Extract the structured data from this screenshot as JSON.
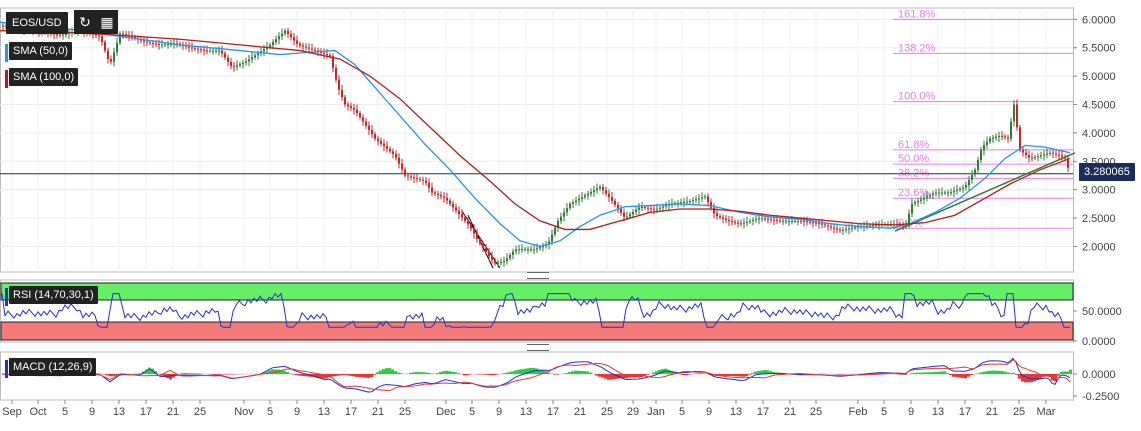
{
  "chart_data": [
    {
      "type": "line",
      "title": "EOS/USD",
      "series_labels": [
        "SMA (50,0)",
        "SMA (100,0)"
      ],
      "colors": {
        "price_up": "#2e7d32",
        "price_down": "#c62828",
        "sma50": "#2196f3",
        "sma100": "#b71c1c",
        "fib": "#e77ee7",
        "last": "#1a2d5a"
      },
      "y_ticks": [
        "6.0000",
        "5.5000",
        "5.0000",
        "4.5000",
        "4.0000",
        "3.5000",
        "3.0000",
        "2.5000",
        "2.0000"
      ],
      "ylim": [
        1.55,
        6.2
      ],
      "last_price": "3.280065",
      "x_ticks": [
        "Sep",
        "Oct",
        "5",
        "9",
        "13",
        "17",
        "21",
        "25",
        "Nov",
        "5",
        "9",
        "13",
        "17",
        "21",
        "25",
        "Dec",
        "5",
        "9",
        "13",
        "17",
        "21",
        "25",
        "29",
        "Jan",
        "5",
        "9",
        "13",
        "17",
        "21",
        "25",
        "Feb",
        "5",
        "9",
        "13",
        "17",
        "21",
        "25",
        "Mar"
      ],
      "fibonacci": [
        {
          "label": "161.8%",
          "value": 6.0
        },
        {
          "label": "138.2%",
          "value": 5.4
        },
        {
          "label": "100.0%",
          "value": 4.55
        },
        {
          "label": "61.8%",
          "value": 3.7
        },
        {
          "label": "50.0%",
          "value": 3.45
        },
        {
          "label": "38.2%",
          "value": 3.2
        },
        {
          "label": "23.6%",
          "value": 2.85
        },
        {
          "label": "0.0%",
          "value": 2.32
        }
      ],
      "price": [
        [
          0,
          5.9
        ],
        [
          20,
          5.82
        ],
        [
          40,
          5.78
        ],
        [
          60,
          5.72
        ],
        [
          80,
          5.8
        ],
        [
          100,
          5.7
        ],
        [
          110,
          5.2
        ],
        [
          120,
          5.75
        ],
        [
          130,
          5.7
        ],
        [
          145,
          5.6
        ],
        [
          160,
          5.55
        ],
        [
          175,
          5.58
        ],
        [
          190,
          5.5
        ],
        [
          205,
          5.45
        ],
        [
          220,
          5.45
        ],
        [
          232,
          5.15
        ],
        [
          245,
          5.25
        ],
        [
          258,
          5.4
        ],
        [
          270,
          5.55
        ],
        [
          285,
          5.8
        ],
        [
          298,
          5.55
        ],
        [
          315,
          5.45
        ],
        [
          330,
          5.35
        ],
        [
          338,
          4.8
        ],
        [
          345,
          4.5
        ],
        [
          355,
          4.4
        ],
        [
          365,
          4.15
        ],
        [
          375,
          3.9
        ],
        [
          385,
          3.75
        ],
        [
          395,
          3.6
        ],
        [
          405,
          3.25
        ],
        [
          415,
          3.2
        ],
        [
          425,
          3.15
        ],
        [
          432,
          2.95
        ],
        [
          445,
          2.85
        ],
        [
          460,
          2.55
        ],
        [
          470,
          2.35
        ],
        [
          478,
          2.1
        ],
        [
          488,
          1.85
        ],
        [
          495,
          1.7
        ],
        [
          505,
          1.75
        ],
        [
          515,
          1.95
        ],
        [
          525,
          1.95
        ],
        [
          535,
          1.95
        ],
        [
          548,
          2.05
        ],
        [
          558,
          2.45
        ],
        [
          570,
          2.75
        ],
        [
          585,
          2.9
        ],
        [
          600,
          3.05
        ],
        [
          610,
          2.85
        ],
        [
          625,
          2.5
        ],
        [
          640,
          2.7
        ],
        [
          655,
          2.65
        ],
        [
          670,
          2.75
        ],
        [
          690,
          2.8
        ],
        [
          705,
          2.88
        ],
        [
          715,
          2.55
        ],
        [
          728,
          2.45
        ],
        [
          740,
          2.4
        ],
        [
          760,
          2.5
        ],
        [
          780,
          2.45
        ],
        [
          800,
          2.45
        ],
        [
          820,
          2.4
        ],
        [
          840,
          2.28
        ],
        [
          858,
          2.35
        ],
        [
          875,
          2.38
        ],
        [
          895,
          2.4
        ],
        [
          905,
          2.35
        ],
        [
          912,
          2.75
        ],
        [
          920,
          2.82
        ],
        [
          935,
          2.95
        ],
        [
          950,
          2.95
        ],
        [
          965,
          3.05
        ],
        [
          975,
          3.35
        ],
        [
          982,
          3.75
        ],
        [
          990,
          3.9
        ],
        [
          1000,
          3.95
        ],
        [
          1008,
          3.9
        ],
        [
          1014,
          4.5
        ],
        [
          1020,
          3.7
        ],
        [
          1030,
          3.55
        ],
        [
          1040,
          3.6
        ],
        [
          1050,
          3.65
        ],
        [
          1060,
          3.6
        ],
        [
          1065,
          3.55
        ],
        [
          1070,
          3.28
        ]
      ],
      "sma50": [
        [
          0,
          5.95
        ],
        [
          60,
          5.85
        ],
        [
          120,
          5.7
        ],
        [
          180,
          5.55
        ],
        [
          240,
          5.45
        ],
        [
          280,
          5.38
        ],
        [
          310,
          5.42
        ],
        [
          335,
          5.45
        ],
        [
          355,
          5.2
        ],
        [
          375,
          4.8
        ],
        [
          400,
          4.3
        ],
        [
          425,
          3.8
        ],
        [
          450,
          3.35
        ],
        [
          475,
          2.85
        ],
        [
          500,
          2.4
        ],
        [
          520,
          2.1
        ],
        [
          540,
          2.0
        ],
        [
          560,
          2.1
        ],
        [
          580,
          2.35
        ],
        [
          600,
          2.55
        ],
        [
          625,
          2.7
        ],
        [
          650,
          2.72
        ],
        [
          680,
          2.75
        ],
        [
          710,
          2.72
        ],
        [
          740,
          2.6
        ],
        [
          770,
          2.52
        ],
        [
          800,
          2.48
        ],
        [
          830,
          2.4
        ],
        [
          860,
          2.35
        ],
        [
          890,
          2.32
        ],
        [
          910,
          2.4
        ],
        [
          935,
          2.6
        ],
        [
          960,
          2.85
        ],
        [
          985,
          3.2
        ],
        [
          1005,
          3.55
        ],
        [
          1025,
          3.78
        ],
        [
          1045,
          3.75
        ],
        [
          1070,
          3.65
        ]
      ],
      "sma100": [
        [
          0,
          5.8
        ],
        [
          60,
          5.78
        ],
        [
          120,
          5.72
        ],
        [
          180,
          5.65
        ],
        [
          240,
          5.55
        ],
        [
          300,
          5.45
        ],
        [
          340,
          5.3
        ],
        [
          370,
          5.0
        ],
        [
          400,
          4.6
        ],
        [
          430,
          4.1
        ],
        [
          460,
          3.6
        ],
        [
          490,
          3.15
        ],
        [
          515,
          2.75
        ],
        [
          540,
          2.45
        ],
        [
          565,
          2.3
        ],
        [
          590,
          2.3
        ],
        [
          620,
          2.45
        ],
        [
          650,
          2.6
        ],
        [
          680,
          2.66
        ],
        [
          710,
          2.66
        ],
        [
          740,
          2.62
        ],
        [
          770,
          2.55
        ],
        [
          800,
          2.5
        ],
        [
          830,
          2.45
        ],
        [
          860,
          2.4
        ],
        [
          895,
          2.38
        ],
        [
          925,
          2.42
        ],
        [
          955,
          2.55
        ],
        [
          985,
          2.85
        ],
        [
          1010,
          3.1
        ],
        [
          1040,
          3.35
        ],
        [
          1070,
          3.55
        ]
      ],
      "rsi": {
        "label": "RSI (14,70,30,1)",
        "ticks": [
          "50.0000",
          "0.0000"
        ]
      },
      "macd": {
        "label": "MACD (12,26,9)",
        "ticks": [
          "0.0000",
          "-0.2500"
        ]
      }
    }
  ]
}
